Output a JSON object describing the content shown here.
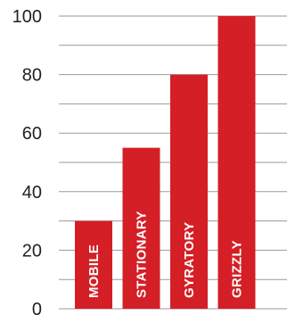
{
  "chart_data": {
    "type": "bar",
    "categories": [
      "MOBILE",
      "STATIONARY",
      "GYRATORY",
      "GRIZZLY"
    ],
    "values": [
      30,
      55,
      80,
      100
    ],
    "title": "",
    "xlabel": "",
    "ylabel": "",
    "ylim": [
      0,
      100
    ],
    "yticks": [
      0,
      20,
      40,
      60,
      80,
      100
    ],
    "grid": true,
    "minor_grid": true,
    "bar_color": "#d41f26",
    "label_color": "#ffffff",
    "grid_color": "#9a9a9a"
  }
}
